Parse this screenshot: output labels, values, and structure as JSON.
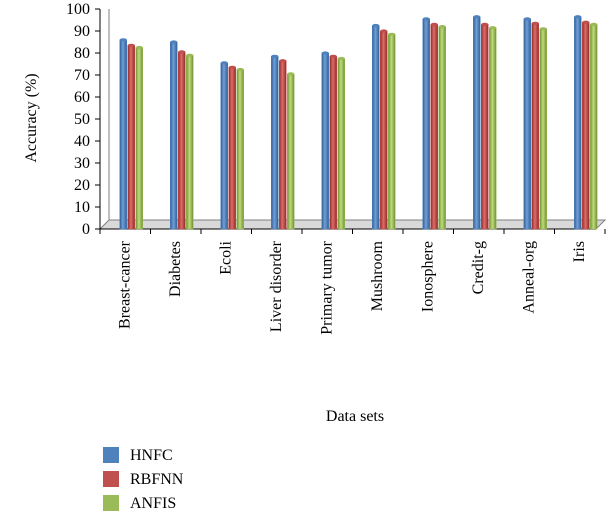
{
  "chart_data": {
    "type": "bar",
    "title": "",
    "xlabel": "Data sets",
    "ylabel": "Accuracy (%)",
    "ylim": [
      0,
      100
    ],
    "yticks": [
      0,
      10,
      20,
      30,
      40,
      50,
      60,
      70,
      80,
      90,
      100
    ],
    "categories": [
      "Breast-cancer",
      "Diabetes",
      "Ecoli",
      "Liver disorder",
      "Primary tumor",
      "Mushroom",
      "Ionosphere",
      "Credit-g",
      "Anneal-org",
      "Iris"
    ],
    "series": [
      {
        "name": "HNFC",
        "color": "#4f81bd",
        "values": [
          86,
          85,
          75.5,
          78.5,
          80,
          92.5,
          95.5,
          96.5,
          95.5,
          96.5
        ]
      },
      {
        "name": "RBFNN",
        "color": "#c0504d",
        "values": [
          83.5,
          80.5,
          73.5,
          76.5,
          78.5,
          90,
          93,
          93,
          93.5,
          94
        ]
      },
      {
        "name": "ANFIS",
        "color": "#9bbb59",
        "values": [
          82.5,
          79,
          72.5,
          70.5,
          77.5,
          88.5,
          92,
          91.5,
          91,
          93
        ]
      }
    ],
    "grid": false,
    "legend_position": "bottom-left"
  }
}
